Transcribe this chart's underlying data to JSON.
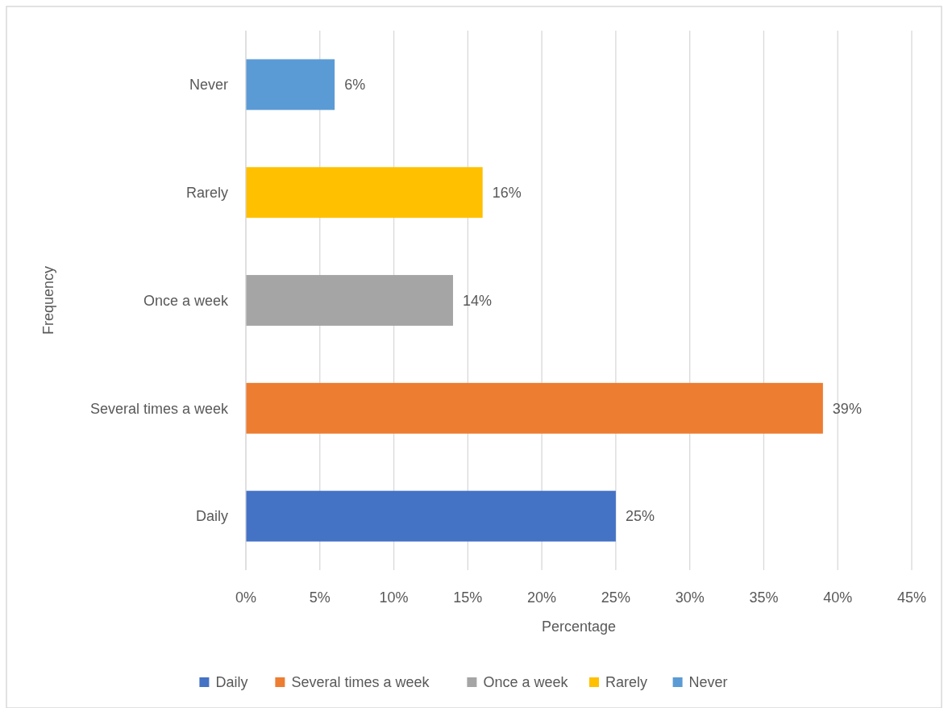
{
  "chart_data": {
    "type": "bar",
    "orientation": "horizontal",
    "stacked": true,
    "xlabel": "Percentage",
    "ylabel": "Frequency",
    "categories": [
      "Never",
      "Rarely",
      "Once a week",
      "Several times a week",
      "Daily"
    ],
    "series": [
      {
        "name": "Daily",
        "color": "#4472c4",
        "values": [
          null,
          null,
          null,
          null,
          25
        ],
        "value_labels": [
          null,
          null,
          null,
          null,
          "25%"
        ]
      },
      {
        "name": "Several times a week",
        "color": "#ed7d31",
        "values": [
          null,
          null,
          null,
          39,
          null
        ],
        "value_labels": [
          null,
          null,
          null,
          "39%",
          null
        ]
      },
      {
        "name": "Once a week",
        "color": "#a5a5a5",
        "values": [
          null,
          null,
          14,
          null,
          null
        ],
        "value_labels": [
          null,
          null,
          "14%",
          null,
          null
        ]
      },
      {
        "name": "Rarely",
        "color": "#ffc000",
        "values": [
          null,
          16,
          null,
          null,
          null
        ],
        "value_labels": [
          null,
          "16%",
          null,
          null,
          null
        ]
      },
      {
        "name": "Never",
        "color": "#5b9bd5",
        "values": [
          6,
          null,
          null,
          null,
          null
        ],
        "value_labels": [
          "6%",
          null,
          null,
          null,
          null
        ]
      }
    ],
    "xlim": [
      0,
      45
    ],
    "xticks": [
      {
        "value": 0,
        "label": "0%"
      },
      {
        "value": 5,
        "label": "5%"
      },
      {
        "value": 10,
        "label": "10%"
      },
      {
        "value": 15,
        "label": "15%"
      },
      {
        "value": 20,
        "label": "20%"
      },
      {
        "value": 25,
        "label": "25%"
      },
      {
        "value": 30,
        "label": "30%"
      },
      {
        "value": 35,
        "label": "35%"
      },
      {
        "value": 40,
        "label": "40%"
      },
      {
        "value": 45,
        "label": "45%"
      }
    ],
    "grid": "x",
    "legend": "bottom"
  }
}
